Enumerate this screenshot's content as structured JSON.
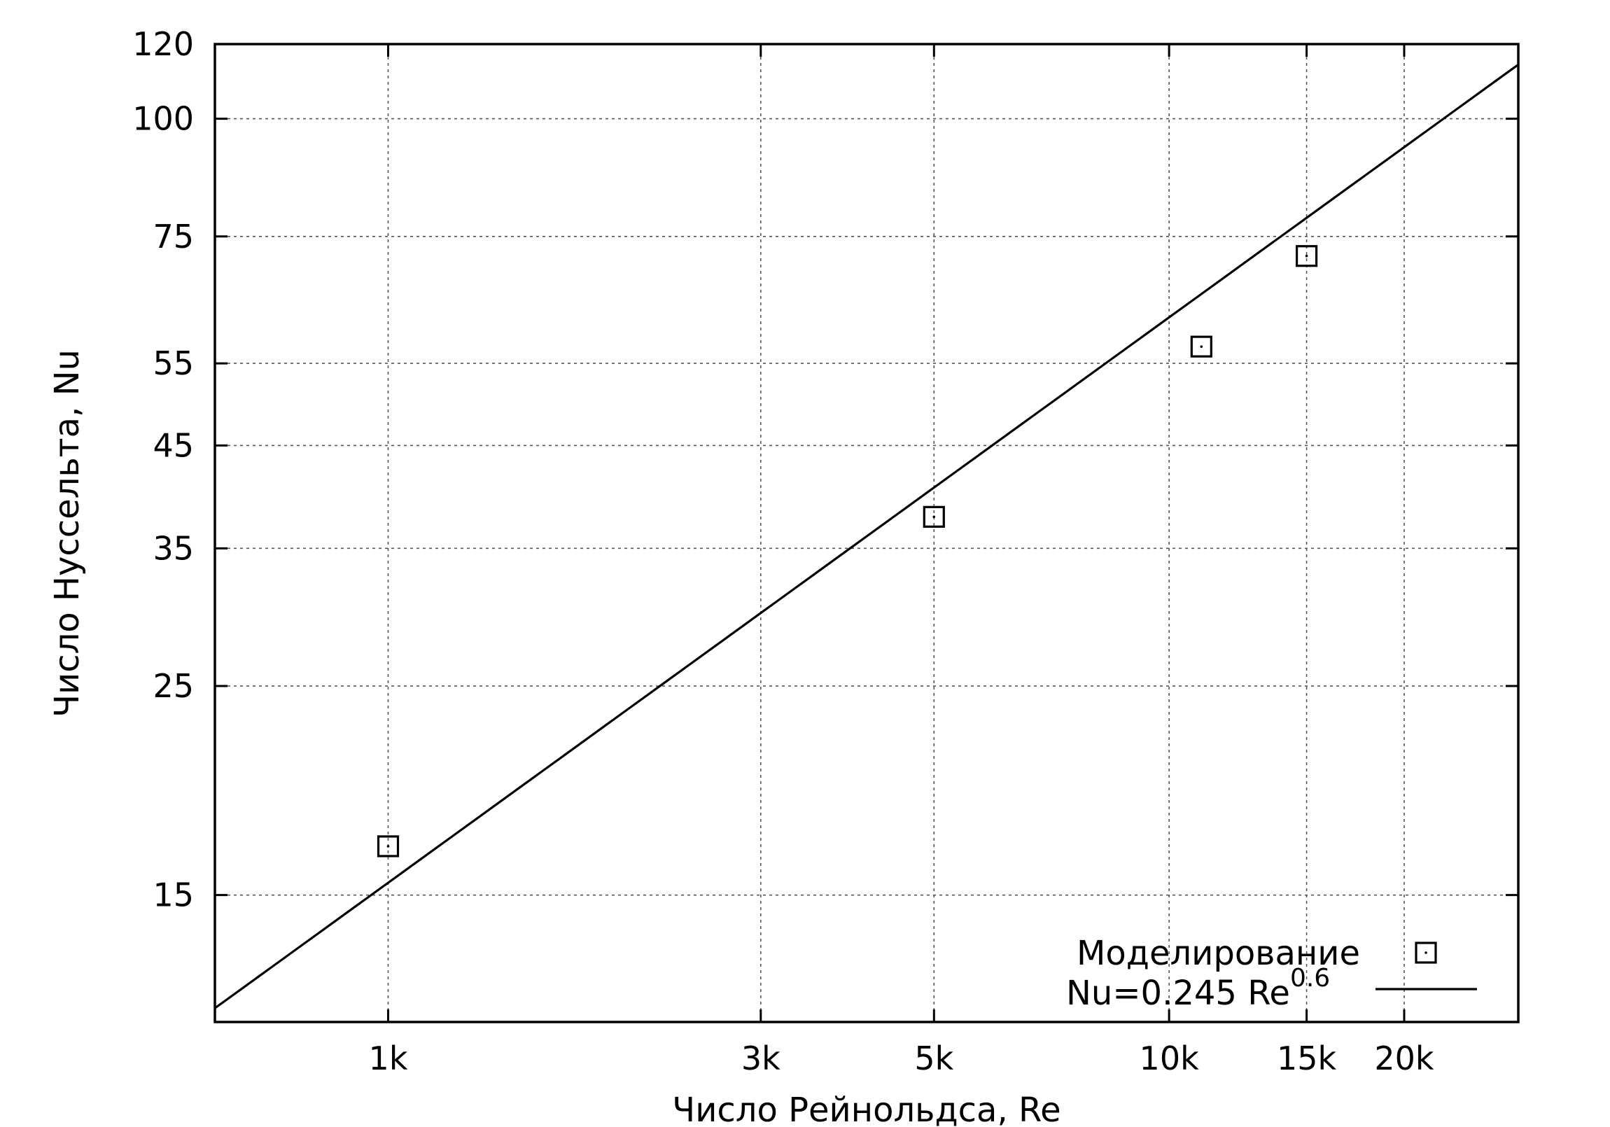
{
  "chart_data": {
    "type": "scatter",
    "xscale": "log",
    "yscale": "log",
    "xlim": [
      600,
      28000
    ],
    "ylim": [
      11,
      120
    ],
    "xlabel": "Число Рейнольдса, Re",
    "ylabel": "Число Нуссельта, Nu",
    "xticks": [
      {
        "value": 1000,
        "label": "1k"
      },
      {
        "value": 3000,
        "label": "3k"
      },
      {
        "value": 5000,
        "label": "5k"
      },
      {
        "value": 10000,
        "label": "10k"
      },
      {
        "value": 15000,
        "label": "15k"
      },
      {
        "value": 20000,
        "label": "20k"
      }
    ],
    "yticks": [
      {
        "value": 15,
        "label": "15"
      },
      {
        "value": 25,
        "label": "25"
      },
      {
        "value": 35,
        "label": "35"
      },
      {
        "value": 45,
        "label": "45"
      },
      {
        "value": 55,
        "label": "55"
      },
      {
        "value": 75,
        "label": "75"
      },
      {
        "value": 100,
        "label": "100"
      },
      {
        "value": 120,
        "label": "120"
      }
    ],
    "grid": true,
    "legend_position": "bottom-right",
    "series": [
      {
        "name": "Моделирование",
        "kind": "points",
        "marker": "square",
        "x": [
          1000,
          5000,
          11000,
          15000
        ],
        "y": [
          16.9,
          37.8,
          57.3,
          71.5
        ]
      },
      {
        "name_main": "Nu=0.245 Re",
        "name_sup": "0.6",
        "kind": "line",
        "coef": 0.245,
        "exponent": 0.6
      }
    ]
  }
}
